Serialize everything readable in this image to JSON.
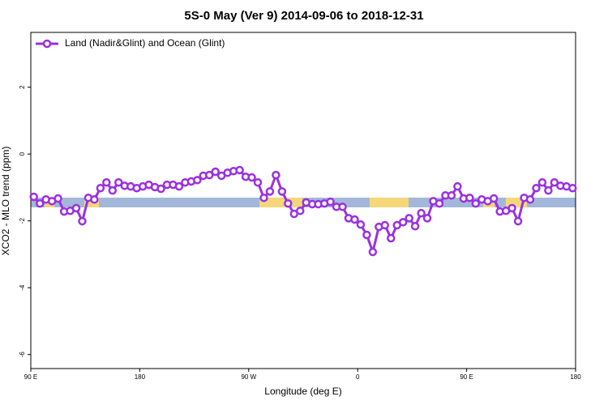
{
  "chart_data": {
    "type": "line",
    "title": "5S-0 May (Ver 9)   2014-09-06 to 2018-12-31",
    "x_label": "Longitude (deg E)",
    "y_label": "XCO2 - MLO trend (ppm)",
    "xlim": [
      90,
      540
    ],
    "ylim": [
      -6.42,
      3.64
    ],
    "xticks": [
      {
        "value": 90,
        "label": "90 E"
      },
      180,
      {
        "value": 270,
        "label": "90 W"
      },
      {
        "value": 360,
        "label": "0"
      },
      {
        "value": 450,
        "label": "90 E"
      },
      {
        "value": 540,
        "label": "180"
      }
    ],
    "yticks": [
      2,
      0,
      -2,
      -4,
      -6
    ],
    "legend": "upper left",
    "series": [
      {
        "name": "Land (Nadir&Glint) and Ocean (Glint)",
        "color": "#9b30e0",
        "x": [
          92.5,
          97.5,
          102.5,
          107.5,
          112.5,
          117.5,
          122.5,
          127.5,
          132.5,
          137.5,
          142.5,
          147.5,
          152.5,
          157.5,
          162.5,
          167.5,
          172.5,
          177.5,
          182.5,
          187.5,
          192.5,
          197.5,
          202.5,
          207.5,
          212.5,
          217.5,
          222.5,
          227.5,
          232.5,
          237.5,
          242.5,
          247.5,
          252.5,
          257.5,
          262.5,
          267.5,
          272.5,
          277.5,
          282.5,
          287.5,
          292.5,
          297.5,
          302.5,
          307.5,
          312.5,
          317.5,
          322.5,
          327.5,
          332.5,
          337.5,
          342.5,
          347.5,
          352.5,
          357.5,
          362.5,
          367.5,
          372.5,
          377.5,
          382.5,
          387.5,
          392.5,
          397.5,
          402.5,
          407.5,
          412.5,
          417.5,
          422.5,
          427.5,
          432.5,
          437.5,
          442.5,
          447.5,
          452.5,
          457.5,
          462.5,
          467.5,
          472.5,
          477.5,
          482.5,
          487.5,
          492.5,
          497.5,
          502.5,
          507.5,
          512.5,
          517.5,
          522.5,
          527.5,
          532.5,
          537.5
        ],
        "values": [
          -1.28,
          -1.48,
          -1.36,
          -1.41,
          -1.33,
          -1.72,
          -1.7,
          -1.62,
          -2.01,
          -1.31,
          -1.36,
          -1.02,
          -0.85,
          -1.09,
          -0.85,
          -0.95,
          -0.97,
          -1.02,
          -0.97,
          -0.92,
          -0.99,
          -1.04,
          -0.92,
          -0.92,
          -0.97,
          -0.85,
          -0.82,
          -0.78,
          -0.65,
          -0.63,
          -0.53,
          -0.65,
          -0.56,
          -0.51,
          -0.48,
          -0.68,
          -0.7,
          -0.85,
          -1.31,
          -1.12,
          -0.63,
          -1.12,
          -1.48,
          -1.79,
          -1.7,
          -1.45,
          -1.5,
          -1.5,
          -1.48,
          -1.43,
          -1.58,
          -1.58,
          -1.92,
          -1.96,
          -2.11,
          -2.42,
          -2.93,
          -2.18,
          -2.13,
          -2.52,
          -2.13,
          -2.04,
          -1.92,
          -2.16,
          -1.77,
          -1.92,
          -1.41,
          -1.48,
          -1.24,
          -1.24,
          -0.97,
          -1.33,
          -1.31,
          -1.48,
          -1.36,
          -1.41,
          -1.33,
          -1.72,
          -1.7,
          -1.62,
          -2.01,
          -1.31,
          -1.36,
          -1.02,
          -0.85,
          -1.09,
          -0.85,
          -0.95,
          -0.97,
          -1.02
        ]
      }
    ]
  }
}
